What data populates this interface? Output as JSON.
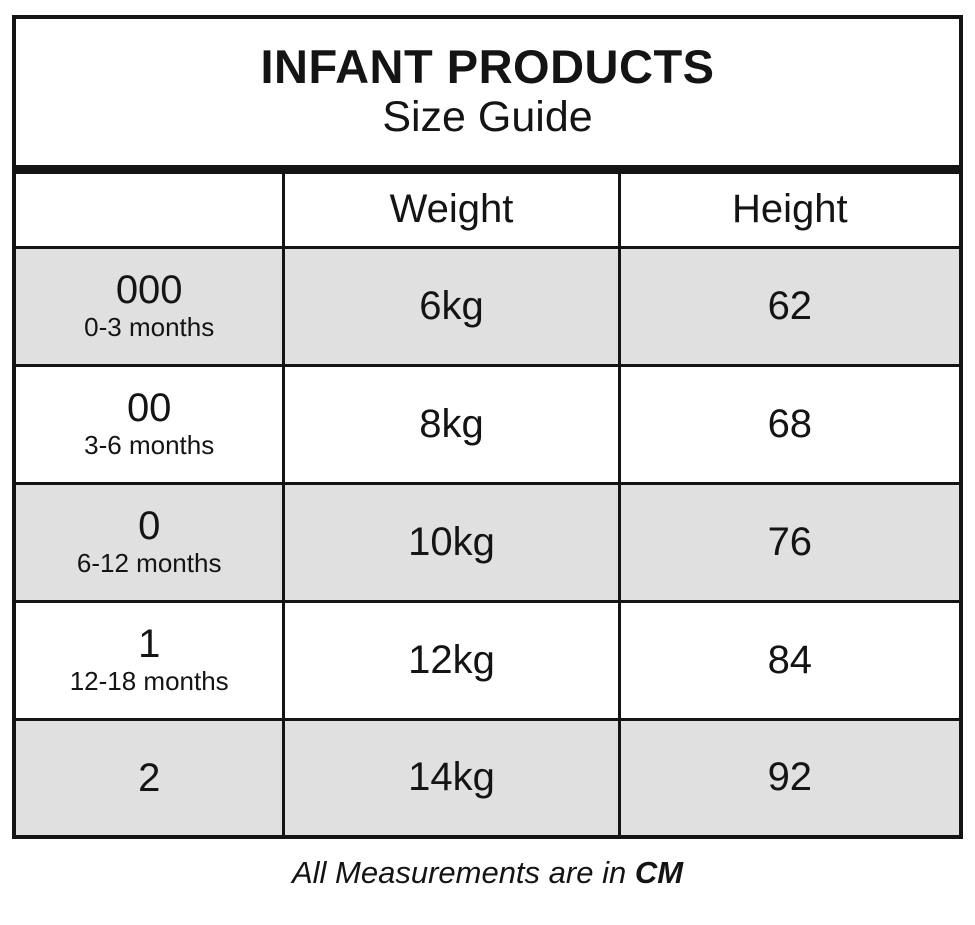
{
  "title": {
    "line1": "INFANT PRODUCTS",
    "line2": "Size Guide"
  },
  "columns": {
    "size_label": "",
    "weight_label": "Weight",
    "height_label": "Height"
  },
  "rows": [
    {
      "size": "000",
      "age": "0-3 months",
      "weight": "6kg",
      "height": "62"
    },
    {
      "size": "00",
      "age": "3-6 months",
      "weight": "8kg",
      "height": "68"
    },
    {
      "size": "0",
      "age": "6-12 months",
      "weight": "10kg",
      "height": "76"
    },
    {
      "size": "1",
      "age": "12-18 months",
      "weight": "12kg",
      "height": "84"
    },
    {
      "size": "2",
      "age": "",
      "weight": "14kg",
      "height": "92"
    }
  ],
  "footer": {
    "text": "All Measurements are in",
    "unit": "CM"
  },
  "colors": {
    "shaded_row": "#e0e0e1",
    "border": "#141414",
    "background": "#ffffff"
  }
}
